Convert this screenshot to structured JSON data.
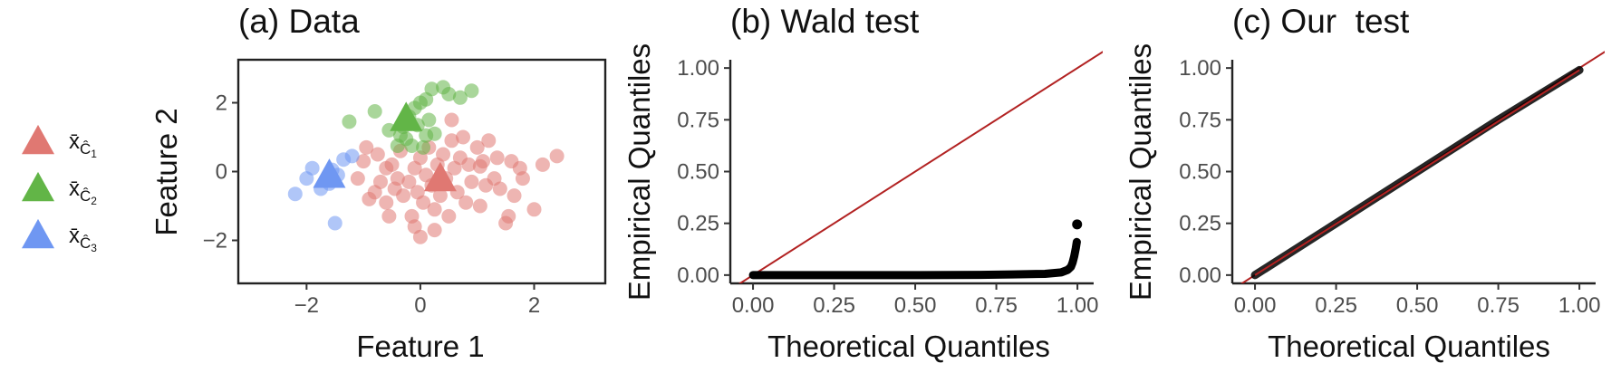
{
  "colors": {
    "cluster1": "#e07872",
    "cluster2": "#62b547",
    "cluster3": "#6f97f2",
    "reference_line": "#b22222",
    "qq_points": "#000000"
  },
  "legend": {
    "entries": [
      {
        "symbol": "x̄",
        "sub": "Ĉ",
        "index": "1",
        "color_key": "cluster1",
        "icon": "triangle-icon"
      },
      {
        "symbol": "x̄",
        "sub": "Ĉ",
        "index": "2",
        "color_key": "cluster2",
        "icon": "triangle-icon"
      },
      {
        "symbol": "x̄",
        "sub": "Ĉ",
        "index": "3",
        "color_key": "cluster3",
        "icon": "triangle-icon"
      }
    ]
  },
  "chart_data": [
    {
      "id": "a",
      "type": "scatter",
      "title": "(a) Data",
      "xlabel": "Feature 1",
      "ylabel": "Feature 2",
      "xlim": [
        -3.2,
        3.25
      ],
      "ylim": [
        -3.25,
        3.25
      ],
      "xticks": [
        -2,
        0,
        2
      ],
      "yticks": [
        -2,
        0,
        2
      ],
      "xtick_labels": [
        "−2",
        "0",
        "2"
      ],
      "ytick_labels": [
        "−2",
        "0",
        "2"
      ],
      "frame": true,
      "series": [
        {
          "color_key": "cluster1",
          "points": [
            [
              -1.1,
              -0.2
            ],
            [
              -1.0,
              0.3
            ],
            [
              -0.9,
              -0.8
            ],
            [
              -0.8,
              -0.6
            ],
            [
              -0.75,
              0.5
            ],
            [
              -0.7,
              -0.3
            ],
            [
              -0.6,
              -0.9
            ],
            [
              -0.55,
              -1.3
            ],
            [
              -0.5,
              0.2
            ],
            [
              -0.45,
              -0.5
            ],
            [
              -0.4,
              -0.2
            ],
            [
              -0.35,
              0.6
            ],
            [
              -0.3,
              -0.7
            ],
            [
              -0.2,
              -0.3
            ],
            [
              -0.1,
              0.1
            ],
            [
              -0.1,
              -1.6
            ],
            [
              -0.05,
              -0.6
            ],
            [
              0.0,
              0.4
            ],
            [
              0.0,
              -1.9
            ],
            [
              0.05,
              -0.9
            ],
            [
              0.1,
              -0.1
            ],
            [
              0.15,
              0.7
            ],
            [
              0.2,
              -0.4
            ],
            [
              0.25,
              -1.1
            ],
            [
              0.3,
              0.2
            ],
            [
              0.35,
              -0.7
            ],
            [
              0.4,
              0.5
            ],
            [
              0.45,
              -0.2
            ],
            [
              0.5,
              -1.3
            ],
            [
              0.55,
              0.9
            ],
            [
              0.6,
              0.1
            ],
            [
              0.65,
              -0.6
            ],
            [
              0.7,
              0.4
            ],
            [
              0.75,
              1.0
            ],
            [
              0.8,
              -0.9
            ],
            [
              0.85,
              0.2
            ],
            [
              0.9,
              -0.3
            ],
            [
              1.0,
              0.7
            ],
            [
              1.05,
              -1.0
            ],
            [
              1.1,
              0.3
            ],
            [
              1.15,
              -0.4
            ],
            [
              1.2,
              0.9
            ],
            [
              1.3,
              -0.2
            ],
            [
              1.35,
              0.4
            ],
            [
              1.4,
              -0.5
            ],
            [
              1.5,
              -1.5
            ],
            [
              1.55,
              -1.3
            ],
            [
              1.6,
              0.3
            ],
            [
              1.65,
              -0.7
            ],
            [
              1.75,
              0.1
            ],
            [
              1.8,
              -0.2
            ],
            [
              2.0,
              -1.1
            ],
            [
              2.15,
              0.2
            ],
            [
              2.4,
              0.45
            ],
            [
              -0.15,
              -1.3
            ],
            [
              -0.95,
              0.7
            ],
            [
              0.55,
              1.5
            ],
            [
              0.25,
              -1.7
            ],
            [
              -0.6,
              0.1
            ],
            [
              1.05,
              0.15
            ]
          ]
        },
        {
          "color_key": "cluster2",
          "points": [
            [
              -1.25,
              1.45
            ],
            [
              -0.8,
              1.75
            ],
            [
              -0.55,
              1.2
            ],
            [
              -0.4,
              0.75
            ],
            [
              -0.35,
              1.05
            ],
            [
              -0.25,
              0.95
            ],
            [
              -0.2,
              1.6
            ],
            [
              -0.15,
              0.75
            ],
            [
              -0.1,
              1.85
            ],
            [
              -0.05,
              1.35
            ],
            [
              0.0,
              2.0
            ],
            [
              0.05,
              0.7
            ],
            [
              0.1,
              2.1
            ],
            [
              0.15,
              1.5
            ],
            [
              0.2,
              2.4
            ],
            [
              0.25,
              1.1
            ],
            [
              0.4,
              2.45
            ],
            [
              0.5,
              2.25
            ],
            [
              0.7,
              2.15
            ],
            [
              0.9,
              2.35
            ],
            [
              -0.3,
              1.3
            ],
            [
              0.1,
              1.05
            ]
          ]
        },
        {
          "color_key": "cluster3",
          "points": [
            [
              -2.2,
              -0.65
            ],
            [
              -2.0,
              -0.2
            ],
            [
              -1.9,
              0.1
            ],
            [
              -1.75,
              -0.5
            ],
            [
              -1.6,
              -0.35
            ],
            [
              -1.55,
              0.05
            ],
            [
              -1.5,
              -1.5
            ],
            [
              -1.35,
              0.35
            ],
            [
              -1.2,
              0.45
            ],
            [
              -1.45,
              -0.1
            ]
          ]
        }
      ],
      "centroids": [
        {
          "color_key": "cluster1",
          "x": 0.35,
          "y": -0.25
        },
        {
          "color_key": "cluster2",
          "x": -0.25,
          "y": 1.5
        },
        {
          "color_key": "cluster3",
          "x": -1.6,
          "y": -0.15
        }
      ]
    },
    {
      "id": "b",
      "type": "scatter",
      "title": "(b) Wald test",
      "xlabel": "Theoretical Quantiles",
      "ylabel": "Empirical Quantiles",
      "xlim": [
        -0.07,
        1.05
      ],
      "ylim": [
        -0.04,
        1.04
      ],
      "xticks": [
        0,
        0.25,
        0.5,
        0.75,
        1.0
      ],
      "yticks": [
        0,
        0.25,
        0.5,
        0.75,
        1.0
      ],
      "xtick_labels": [
        "0.00",
        "0.25",
        "0.50",
        "0.75",
        "1.00"
      ],
      "ytick_labels": [
        "0.00",
        "0.25",
        "0.50",
        "0.75",
        "1.00"
      ],
      "frame": false,
      "reference_line": {
        "from": [
          -0.1,
          -0.1
        ],
        "to": [
          1.1,
          1.1
        ]
      },
      "qq_curve": [
        [
          0.0,
          0.0
        ],
        [
          0.1,
          0.0
        ],
        [
          0.3,
          0.0
        ],
        [
          0.5,
          0.0
        ],
        [
          0.7,
          0.001
        ],
        [
          0.8,
          0.003
        ],
        [
          0.9,
          0.006
        ],
        [
          0.95,
          0.013
        ],
        [
          0.97,
          0.025
        ],
        [
          0.98,
          0.04
        ],
        [
          0.985,
          0.06
        ],
        [
          0.99,
          0.09
        ],
        [
          0.995,
          0.13
        ],
        [
          0.998,
          0.16
        ]
      ],
      "outlier": [
        0.999,
        0.245
      ]
    },
    {
      "id": "c",
      "type": "scatter",
      "title": "(c) Our  test",
      "xlabel": "Theoretical Quantiles",
      "ylabel": "Empirical Quantiles",
      "xlim": [
        -0.07,
        1.05
      ],
      "ylim": [
        -0.04,
        1.04
      ],
      "xticks": [
        0,
        0.25,
        0.5,
        0.75,
        1.0
      ],
      "yticks": [
        0,
        0.25,
        0.5,
        0.75,
        1.0
      ],
      "xtick_labels": [
        "0.00",
        "0.25",
        "0.50",
        "0.75",
        "1.00"
      ],
      "ytick_labels": [
        "0.00",
        "0.25",
        "0.50",
        "0.75",
        "1.00"
      ],
      "frame": false,
      "reference_line": {
        "from": [
          -0.1,
          -0.1
        ],
        "to": [
          1.1,
          1.1
        ]
      },
      "qq_curve": [
        [
          0.0,
          0.0
        ],
        [
          0.25,
          0.25
        ],
        [
          0.5,
          0.5
        ],
        [
          0.75,
          0.75
        ],
        [
          1.0,
          0.99
        ]
      ]
    }
  ]
}
